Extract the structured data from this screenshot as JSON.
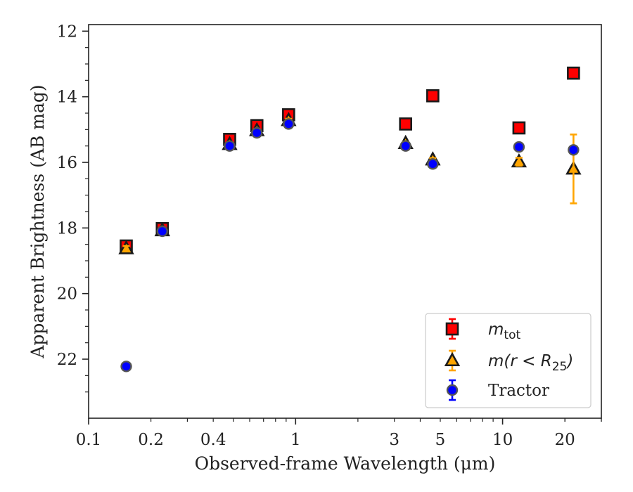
{
  "chart_data": {
    "type": "scatter",
    "title": "",
    "xlabel": "Observed-frame Wavelength (μm)",
    "ylabel": "Apparent Brightness (AB mag)",
    "xscale": "log",
    "xlim": [
      0.1,
      30
    ],
    "ylim": [
      23.8,
      11.8
    ],
    "y_inverted": true,
    "grid": false,
    "legend_position": "lower-right",
    "x_ticks": [
      {
        "value": 0.1,
        "label": "0.1"
      },
      {
        "value": 0.2,
        "label": "0.2"
      },
      {
        "value": 0.4,
        "label": "0.4"
      },
      {
        "value": 1,
        "label": "1"
      },
      {
        "value": 3,
        "label": "3"
      },
      {
        "value": 5,
        "label": "5"
      },
      {
        "value": 10,
        "label": "10"
      },
      {
        "value": 20,
        "label": "20"
      }
    ],
    "y_ticks": [
      {
        "value": 12,
        "label": "12"
      },
      {
        "value": 14,
        "label": "14"
      },
      {
        "value": 16,
        "label": "16"
      },
      {
        "value": 18,
        "label": "18"
      },
      {
        "value": 20,
        "label": "20"
      },
      {
        "value": 22,
        "label": "22"
      }
    ],
    "series": [
      {
        "name_main": "m",
        "name_sub": "tot",
        "marker": "square",
        "fill": "#ff0000",
        "edge": "#1a1a1a",
        "errcolor": "#ff0000",
        "points": [
          {
            "x": 0.152,
            "y": 18.55,
            "err": 0.08
          },
          {
            "x": 0.227,
            "y": 18.02,
            "err": 0.05
          },
          {
            "x": 0.48,
            "y": 15.3,
            "err": 0.05
          },
          {
            "x": 0.65,
            "y": 14.88,
            "err": 0.05
          },
          {
            "x": 0.925,
            "y": 14.55,
            "err": 0.05
          },
          {
            "x": 3.4,
            "y": 14.83,
            "err": 0.05
          },
          {
            "x": 4.6,
            "y": 13.97,
            "err": 0.05
          },
          {
            "x": 12.0,
            "y": 14.95,
            "err": 0.05
          },
          {
            "x": 22.0,
            "y": 13.28,
            "err": 0.05
          }
        ]
      },
      {
        "name_main": "m(r < R",
        "name_sub": "25",
        "name_tail": ")",
        "marker": "triangle",
        "fill": "#ffa500",
        "edge": "#1a1a1a",
        "errcolor": "#ffa500",
        "points": [
          {
            "x": 0.152,
            "y": 18.63,
            "err": 0.08
          },
          {
            "x": 0.227,
            "y": 18.08,
            "err": 0.05
          },
          {
            "x": 0.48,
            "y": 15.45,
            "err": 0.05
          },
          {
            "x": 0.65,
            "y": 15.03,
            "err": 0.05
          },
          {
            "x": 0.925,
            "y": 14.72,
            "err": 0.05
          },
          {
            "x": 3.4,
            "y": 15.42,
            "err": 0.05
          },
          {
            "x": 4.6,
            "y": 15.92,
            "err": 0.05
          },
          {
            "x": 12.0,
            "y": 15.98,
            "err": 0.12
          },
          {
            "x": 22.0,
            "y": 16.2,
            "err": 1.05
          }
        ]
      },
      {
        "name_main": "Tractor",
        "marker": "circle",
        "fill": "#0000ff",
        "edge": "#555555",
        "errcolor": "#0000ff",
        "points": [
          {
            "x": 0.152,
            "y": 22.22,
            "err": 0.05
          },
          {
            "x": 0.227,
            "y": 18.1,
            "err": 0.05
          },
          {
            "x": 0.48,
            "y": 15.5,
            "err": 0.05
          },
          {
            "x": 0.65,
            "y": 15.1,
            "err": 0.05
          },
          {
            "x": 0.925,
            "y": 14.83,
            "err": 0.05
          },
          {
            "x": 3.4,
            "y": 15.5,
            "err": 0.05
          },
          {
            "x": 4.6,
            "y": 16.05,
            "err": 0.05
          },
          {
            "x": 12.0,
            "y": 15.53,
            "err": 0.05
          },
          {
            "x": 22.0,
            "y": 15.62,
            "err": 0.05
          }
        ]
      }
    ]
  }
}
